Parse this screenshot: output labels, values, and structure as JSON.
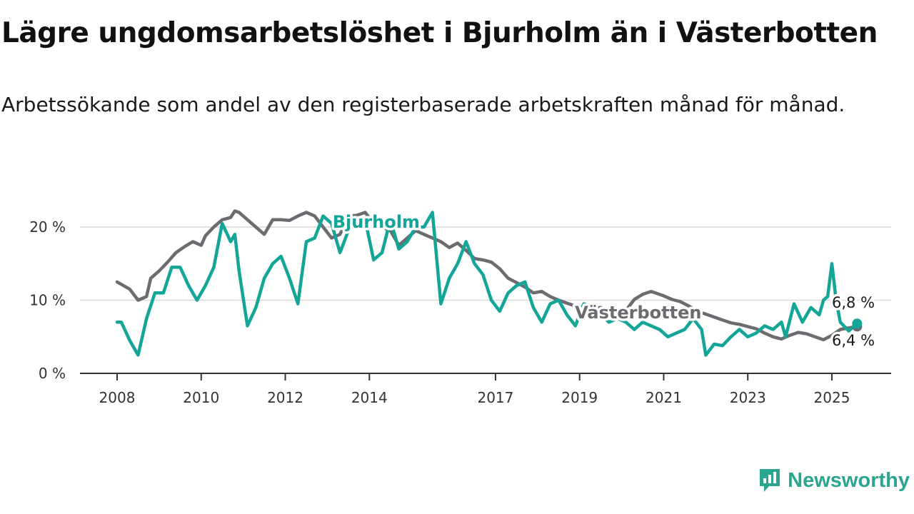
{
  "header": {
    "title": "Lägre ungdomsarbetslöshet i Bjurholm än i Västerbotten",
    "subtitle": "Arbetssökande som andel av den registerbaserade arbetskraften månad för månad."
  },
  "brand": {
    "name": "Newsworthy",
    "icon": "newsworthy-logo-icon",
    "color": "#2aa58f"
  },
  "chart_data": {
    "type": "line",
    "x_unit": "year",
    "xlim": [
      2008,
      2025.7
    ],
    "ylim": [
      0,
      22
    ],
    "grid": true,
    "x_ticks": [
      2008,
      2010,
      2012,
      2014,
      2017,
      2019,
      2021,
      2023,
      2025
    ],
    "x_tick_labels": [
      "2008",
      "2010",
      "2012",
      "2014",
      "2017",
      "2019",
      "2021",
      "2023",
      "2025"
    ],
    "y_ticks": [
      0,
      10,
      20
    ],
    "y_tick_labels": [
      "0 %",
      "10 %",
      "20 %"
    ],
    "series": [
      {
        "name": "Västerbotten",
        "color": "#6b6b70",
        "end_label": "6,4 %",
        "points": [
          [
            2008.0,
            12.5
          ],
          [
            2008.3,
            11.5
          ],
          [
            2008.5,
            10.0
          ],
          [
            2008.7,
            10.5
          ],
          [
            2008.8,
            13.0
          ],
          [
            2009.0,
            14.0
          ],
          [
            2009.2,
            15.2
          ],
          [
            2009.4,
            16.5
          ],
          [
            2009.6,
            17.3
          ],
          [
            2009.8,
            18.0
          ],
          [
            2010.0,
            17.5
          ],
          [
            2010.1,
            18.8
          ],
          [
            2010.3,
            20.0
          ],
          [
            2010.5,
            21.0
          ],
          [
            2010.7,
            21.3
          ],
          [
            2010.8,
            22.2
          ],
          [
            2010.9,
            22.0
          ],
          [
            2011.1,
            21.0
          ],
          [
            2011.3,
            20.0
          ],
          [
            2011.5,
            19.0
          ],
          [
            2011.7,
            21.0
          ],
          [
            2011.9,
            21.0
          ],
          [
            2012.1,
            20.9
          ],
          [
            2012.3,
            21.5
          ],
          [
            2012.5,
            22.0
          ],
          [
            2012.7,
            21.5
          ],
          [
            2012.9,
            20.0
          ],
          [
            2013.1,
            18.5
          ],
          [
            2013.3,
            19.0
          ],
          [
            2013.5,
            21.5
          ],
          [
            2013.7,
            21.6
          ],
          [
            2013.9,
            22.0
          ],
          [
            2014.1,
            20.5
          ],
          [
            2014.3,
            20.0
          ],
          [
            2014.5,
            19.5
          ],
          [
            2014.7,
            17.5
          ],
          [
            2014.9,
            18.5
          ],
          [
            2015.1,
            19.5
          ],
          [
            2015.3,
            19.0
          ],
          [
            2015.5,
            18.5
          ],
          [
            2015.7,
            18.0
          ],
          [
            2015.9,
            17.2
          ],
          [
            2016.1,
            17.8
          ],
          [
            2016.3,
            16.8
          ],
          [
            2016.5,
            15.7
          ],
          [
            2016.7,
            15.5
          ],
          [
            2016.9,
            15.2
          ],
          [
            2017.1,
            14.3
          ],
          [
            2017.3,
            13.0
          ],
          [
            2017.5,
            12.4
          ],
          [
            2017.7,
            11.8
          ],
          [
            2017.9,
            11.0
          ],
          [
            2018.1,
            11.2
          ],
          [
            2018.3,
            10.5
          ],
          [
            2018.5,
            10.0
          ],
          [
            2018.7,
            9.6
          ],
          [
            2018.9,
            9.2
          ],
          [
            2019.1,
            9.0
          ],
          [
            2019.3,
            8.9
          ],
          [
            2019.5,
            9.0
          ],
          [
            2019.7,
            8.7
          ],
          [
            2019.9,
            8.5
          ],
          [
            2020.1,
            8.6
          ],
          [
            2020.3,
            10.1
          ],
          [
            2020.5,
            10.8
          ],
          [
            2020.7,
            11.2
          ],
          [
            2020.8,
            11.0
          ],
          [
            2021.0,
            10.6
          ],
          [
            2021.2,
            10.1
          ],
          [
            2021.4,
            9.8
          ],
          [
            2021.6,
            9.2
          ],
          [
            2021.8,
            8.5
          ],
          [
            2022.0,
            8.1
          ],
          [
            2022.2,
            7.7
          ],
          [
            2022.4,
            7.3
          ],
          [
            2022.6,
            6.9
          ],
          [
            2022.8,
            6.7
          ],
          [
            2023.0,
            6.4
          ],
          [
            2023.2,
            6.1
          ],
          [
            2023.4,
            5.5
          ],
          [
            2023.6,
            5.0
          ],
          [
            2023.8,
            4.7
          ],
          [
            2024.0,
            5.2
          ],
          [
            2024.2,
            5.6
          ],
          [
            2024.4,
            5.4
          ],
          [
            2024.6,
            5.0
          ],
          [
            2024.8,
            4.6
          ],
          [
            2025.0,
            5.2
          ],
          [
            2025.2,
            6.0
          ],
          [
            2025.4,
            6.2
          ],
          [
            2025.6,
            6.4
          ]
        ]
      },
      {
        "name": "Bjurholm",
        "color": "#13a597",
        "end_label": "6,8 %",
        "points": [
          [
            2008.0,
            7.0
          ],
          [
            2008.1,
            7.0
          ],
          [
            2008.3,
            4.5
          ],
          [
            2008.5,
            2.5
          ],
          [
            2008.7,
            7.5
          ],
          [
            2008.9,
            11.0
          ],
          [
            2009.1,
            11.0
          ],
          [
            2009.3,
            14.5
          ],
          [
            2009.5,
            14.5
          ],
          [
            2009.7,
            12.0
          ],
          [
            2009.9,
            10.0
          ],
          [
            2010.1,
            12.0
          ],
          [
            2010.3,
            14.5
          ],
          [
            2010.5,
            20.5
          ],
          [
            2010.7,
            18.0
          ],
          [
            2010.8,
            19.0
          ],
          [
            2010.9,
            14.0
          ],
          [
            2011.1,
            6.5
          ],
          [
            2011.3,
            9.0
          ],
          [
            2011.5,
            13.0
          ],
          [
            2011.7,
            15.0
          ],
          [
            2011.9,
            16.0
          ],
          [
            2012.1,
            13.0
          ],
          [
            2012.3,
            9.5
          ],
          [
            2012.5,
            18.0
          ],
          [
            2012.7,
            18.5
          ],
          [
            2012.9,
            21.5
          ],
          [
            2013.1,
            20.5
          ],
          [
            2013.3,
            16.5
          ],
          [
            2013.5,
            19.5
          ],
          [
            2013.7,
            21.0
          ],
          [
            2013.9,
            21.0
          ],
          [
            2014.1,
            15.5
          ],
          [
            2014.3,
            16.5
          ],
          [
            2014.5,
            21.0
          ],
          [
            2014.7,
            17.0
          ],
          [
            2014.9,
            18.0
          ],
          [
            2015.1,
            20.0
          ],
          [
            2015.3,
            20.0
          ],
          [
            2015.5,
            22.0
          ],
          [
            2015.7,
            9.5
          ],
          [
            2015.9,
            13.0
          ],
          [
            2016.1,
            15.0
          ],
          [
            2016.3,
            18.0
          ],
          [
            2016.5,
            15.0
          ],
          [
            2016.7,
            13.5
          ],
          [
            2016.9,
            10.0
          ],
          [
            2017.1,
            8.5
          ],
          [
            2017.3,
            11.0
          ],
          [
            2017.5,
            12.0
          ],
          [
            2017.7,
            12.5
          ],
          [
            2017.9,
            9.0
          ],
          [
            2018.1,
            7.0
          ],
          [
            2018.3,
            9.5
          ],
          [
            2018.5,
            10.0
          ],
          [
            2018.7,
            8.0
          ],
          [
            2018.9,
            6.5
          ],
          [
            2019.1,
            9.5
          ],
          [
            2019.3,
            9.0
          ],
          [
            2019.5,
            8.0
          ],
          [
            2019.7,
            7.0
          ],
          [
            2019.9,
            7.5
          ],
          [
            2020.1,
            7.0
          ],
          [
            2020.3,
            6.0
          ],
          [
            2020.5,
            7.0
          ],
          [
            2020.7,
            6.5
          ],
          [
            2020.9,
            6.0
          ],
          [
            2021.1,
            5.0
          ],
          [
            2021.3,
            5.5
          ],
          [
            2021.5,
            6.0
          ],
          [
            2021.7,
            7.5
          ],
          [
            2021.9,
            6.0
          ],
          [
            2022.0,
            2.5
          ],
          [
            2022.2,
            4.0
          ],
          [
            2022.4,
            3.8
          ],
          [
            2022.6,
            5.0
          ],
          [
            2022.8,
            6.0
          ],
          [
            2023.0,
            5.0
          ],
          [
            2023.2,
            5.5
          ],
          [
            2023.4,
            6.5
          ],
          [
            2023.6,
            6.0
          ],
          [
            2023.8,
            7.0
          ],
          [
            2023.9,
            5.0
          ],
          [
            2024.1,
            9.5
          ],
          [
            2024.3,
            7.0
          ],
          [
            2024.5,
            9.0
          ],
          [
            2024.7,
            8.0
          ],
          [
            2024.8,
            10.0
          ],
          [
            2024.9,
            10.5
          ],
          [
            2025.0,
            15.0
          ],
          [
            2025.1,
            10.0
          ],
          [
            2025.2,
            7.0
          ],
          [
            2025.4,
            5.8
          ],
          [
            2025.6,
            6.8
          ]
        ]
      }
    ]
  }
}
